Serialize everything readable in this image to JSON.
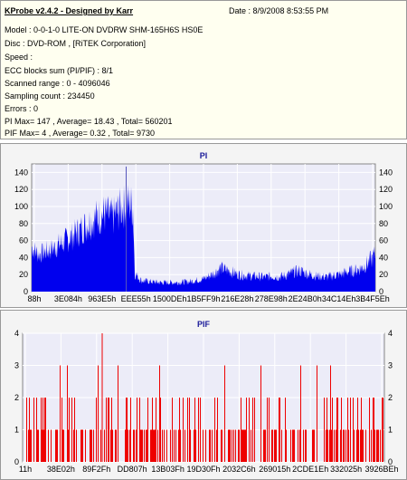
{
  "info": {
    "title": "KProbe v2.4.2 - Designed by Karr",
    "date": "Date : 8/9/2008 8:53:55 PM",
    "model": "Model : 0-0-1-0 LITE-ON DVDRW SHM-165H6S HS0E",
    "disc": "Disc : DVD-ROM ,  [RiTEK Corporation]",
    "speed": "Speed :",
    "ecc": "ECC blocks sum (PI/PIF) : 8/1",
    "range": "Scanned range : 0 - 4096046",
    "sampling": "Sampling count : 234450",
    "errors": "Errors : 0",
    "pi_stats": "PI Max= 147 , Average= 18.43 , Total= 560201",
    "pif_stats": "PIF Max= 4 , Average= 0.32 , Total= 9730"
  },
  "colors": {
    "plot_bg": "#ececf8",
    "series": "#0000ee",
    "pif_series": "#ee0000",
    "grid": "#ffffff",
    "marker": "#5555bb"
  },
  "chart_data": [
    {
      "type": "area",
      "title": "PI",
      "ylim": [
        0,
        150
      ],
      "yticks": [
        "0",
        "20",
        "40",
        "60",
        "80",
        "100",
        "120",
        "140"
      ],
      "xticks": [
        "88h",
        "3E084h",
        "963E5h",
        "EEE55h",
        "1500DEh",
        "1B5FF9h",
        "216E28h",
        "278E98h",
        "2E24B0h",
        "34C14Eh",
        "3B4F5Eh"
      ],
      "max": 147,
      "profile_x": [
        0,
        0.02,
        0.06,
        0.1,
        0.14,
        0.18,
        0.21,
        0.235,
        0.255,
        0.27,
        0.285,
        0.295,
        0.3,
        0.32,
        0.37,
        0.42,
        0.46,
        0.5,
        0.53,
        0.55,
        0.58,
        0.6,
        0.64,
        0.68,
        0.7,
        0.72,
        0.74,
        0.76,
        0.78,
        0.8,
        0.83,
        0.86,
        0.88,
        0.9,
        0.92,
        0.94,
        0.96,
        0.98,
        1.0
      ],
      "profile_y": [
        48,
        40,
        46,
        55,
        66,
        78,
        84,
        80,
        88,
        92,
        95,
        90,
        20,
        12,
        10,
        10,
        11,
        14,
        20,
        26,
        22,
        19,
        17,
        16,
        17,
        16,
        18,
        21,
        23,
        20,
        17,
        16,
        18,
        19,
        22,
        23,
        26,
        32,
        40
      ]
    },
    {
      "type": "bar",
      "title": "PIF",
      "ylim": [
        0,
        4
      ],
      "yticks": [
        "0",
        "1",
        "2",
        "3",
        "4"
      ],
      "xticks": [
        "11h",
        "38E02h",
        "89F2Fh",
        "DD807h",
        "13B03Fh",
        "19D30Fh",
        "2032C6h",
        "269015h",
        "2CDE1Eh",
        "332025h",
        "3926BEh"
      ],
      "max": 4
    }
  ]
}
